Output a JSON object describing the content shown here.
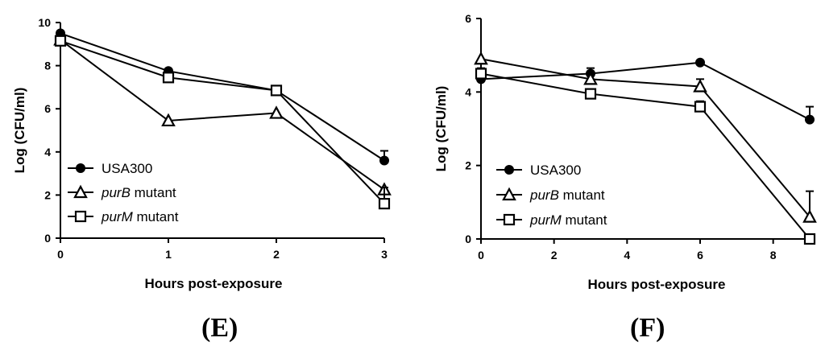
{
  "chart_data": [
    {
      "type": "line",
      "panel_label": "(E)",
      "xlabel": "Hours  post-exposure",
      "ylabel": "Log (CFU/ml)",
      "xlim": [
        0,
        3
      ],
      "ylim": [
        0,
        10
      ],
      "xticks": [
        0,
        1,
        2,
        3
      ],
      "yticks": [
        0,
        2,
        4,
        6,
        8,
        10
      ],
      "grid": false,
      "legend_position": "bottom-left",
      "series": [
        {
          "name": "USA300",
          "italic": "",
          "suffix": "",
          "marker": "circle",
          "x": [
            0,
            1,
            2,
            3
          ],
          "y": [
            9.5,
            7.75,
            6.85,
            3.6
          ],
          "err": [
            0,
            0,
            0,
            0.45
          ]
        },
        {
          "name": "purB mutant",
          "italic": "purB",
          "suffix": " mutant",
          "marker": "triangle",
          "x": [
            0,
            1,
            2,
            3
          ],
          "y": [
            9.2,
            5.45,
            5.8,
            2.25
          ],
          "err": [
            0,
            0,
            0,
            0
          ]
        },
        {
          "name": "purM mutant",
          "italic": "purM",
          "suffix": " mutant",
          "marker": "square",
          "x": [
            0,
            1,
            2,
            3
          ],
          "y": [
            9.15,
            7.45,
            6.85,
            1.6
          ],
          "err": [
            0.3,
            0,
            0,
            0.75
          ]
        }
      ]
    },
    {
      "type": "line",
      "panel_label": "(F)",
      "xlabel": "Hours  post-exposure",
      "ylabel": "Log (CFU/ml)",
      "xlim": [
        0,
        9
      ],
      "ylim": [
        0,
        6
      ],
      "xticks": [
        0,
        2,
        4,
        6,
        8
      ],
      "yticks": [
        0,
        2,
        4,
        6
      ],
      "grid": false,
      "legend_position": "bottom-left",
      "series": [
        {
          "name": "USA300",
          "italic": "",
          "suffix": "",
          "marker": "circle",
          "x": [
            0,
            3,
            6,
            9
          ],
          "y": [
            4.35,
            4.5,
            4.8,
            3.25
          ],
          "err": [
            0,
            0.15,
            0,
            0.35
          ]
        },
        {
          "name": "purB mutant",
          "italic": "purB",
          "suffix": " mutant",
          "marker": "triangle",
          "x": [
            0,
            3,
            6,
            9
          ],
          "y": [
            4.9,
            4.35,
            4.15,
            0.6
          ],
          "err": [
            0,
            0.15,
            0.2,
            0.7
          ]
        },
        {
          "name": "purM mutant",
          "italic": "purM",
          "suffix": " mutant",
          "marker": "square",
          "x": [
            0,
            3,
            6,
            9
          ],
          "y": [
            4.5,
            3.95,
            3.6,
            0.0
          ],
          "err": [
            0.15,
            0,
            0.15,
            0
          ]
        }
      ]
    }
  ]
}
